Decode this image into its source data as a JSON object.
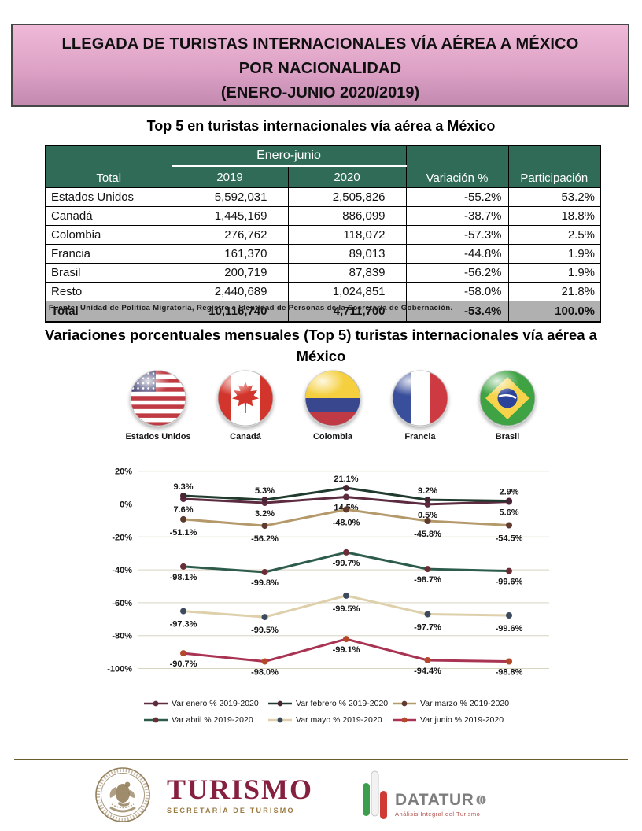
{
  "banner": {
    "title": "LLEGADA DE TURISTAS INTERNACIONALES VÍA AÉREA A MÉXICO POR NACIONALIDAD",
    "subtitle": "(ENERO-JUNIO 2020/2019)"
  },
  "table": {
    "title": "Top 5 en turistas internacionales vía aérea a México",
    "header": {
      "total": "Total",
      "group": "Enero-junio",
      "y2019": "2019",
      "y2020": "2020",
      "variacion": "Variación %",
      "participacion": "Participación"
    },
    "rows": [
      {
        "name": "Estados Unidos",
        "y2019": "5,592,031",
        "y2020": "2,505,826",
        "variacion": "-55.2%",
        "participacion": "53.2%"
      },
      {
        "name": "Canadá",
        "y2019": "1,445,169",
        "y2020": "886,099",
        "variacion": "-38.7%",
        "participacion": "18.8%"
      },
      {
        "name": "Colombia",
        "y2019": "276,762",
        "y2020": "118,072",
        "variacion": "-57.3%",
        "participacion": "2.5%"
      },
      {
        "name": "Francia",
        "y2019": "161,370",
        "y2020": "89,013",
        "variacion": "-44.8%",
        "participacion": "1.9%"
      },
      {
        "name": "Brasil",
        "y2019": "200,719",
        "y2020": "87,839",
        "variacion": "-56.2%",
        "participacion": "1.9%"
      },
      {
        "name": "Resto",
        "y2019": "2,440,689",
        "y2020": "1,024,851",
        "variacion": "-58.0%",
        "participacion": "21.8%"
      }
    ],
    "total_row": {
      "name": "Total",
      "y2019": "10,116,740",
      "y2020": "4,711,700",
      "variacion": "-53.4%",
      "participacion": "100.0%"
    },
    "source": "Fuente: Unidad de Política Migratoria, Registro e Identidad de Personas de la Secretaría de Gobernación."
  },
  "chart_section": {
    "title": "Variaciones porcentuales mensuales (Top 5) turistas internacionales vía aérea a México",
    "flags": [
      {
        "id": "us",
        "label": "Estados Unidos"
      },
      {
        "id": "ca",
        "label": "Canadá"
      },
      {
        "id": "co",
        "label": "Colombia"
      },
      {
        "id": "fr",
        "label": "Francia"
      },
      {
        "id": "br",
        "label": "Brasil"
      }
    ]
  },
  "chart_data": {
    "type": "line",
    "categories": [
      "Estados Unidos",
      "Canadá",
      "Colombia",
      "Francia",
      "Brasil"
    ],
    "y_axis": {
      "tick_labels": [
        "20%",
        "0%",
        "-20%",
        "-40%",
        "-60%",
        "-80%",
        "-100%"
      ],
      "tick_values": [
        20,
        0,
        -20,
        -40,
        -60,
        -80,
        -100
      ],
      "min": -100,
      "max": 20,
      "grid": true
    },
    "legend_position": "bottom",
    "series": [
      {
        "name": "Var enero % 2019-2020",
        "color": "#5c2b40",
        "marker_color": "#5c2b40",
        "values": [
          7.6,
          3.2,
          14.5,
          0.5,
          5.6
        ],
        "label_side": "below",
        "label_dy": 17,
        "plot_values": [
          3.1,
          0.7,
          4.3,
          -0.2,
          1.4
        ]
      },
      {
        "name": "Var febrero % 2019-2020",
        "color": "#203a2d",
        "marker_color": "#4a2535",
        "values": [
          9.3,
          5.3,
          21.1,
          9.2,
          2.9
        ],
        "label_side": "above",
        "label_dy": -8,
        "plot_values": [
          5.0,
          2.6,
          9.8,
          2.6,
          1.9
        ]
      },
      {
        "name": "Var marzo % 2019-2020",
        "color": "#b49a6b",
        "marker_color": "#5f3a2e",
        "values": [
          -51.1,
          -56.2,
          -48.0,
          -45.8,
          -54.5
        ],
        "label_side": "below",
        "label_dy": 20,
        "plot_values": [
          -9.3,
          -13.2,
          -3.3,
          -10.3,
          -12.9
        ]
      },
      {
        "name": "Var abril % 2019-2020",
        "color": "#2e5c4c",
        "marker_color": "#6b2d35",
        "values": [
          -98.1,
          -99.8,
          -99.7,
          -98.7,
          -99.6
        ],
        "label_side": "below",
        "label_dy": 17,
        "plot_values": [
          -38.0,
          -41.4,
          -29.4,
          -39.5,
          -40.7
        ]
      },
      {
        "name": "Var mayo % 2019-2020",
        "color": "#ddd0ab",
        "marker_color": "#3d4a5d",
        "values": [
          -97.3,
          -99.5,
          -99.5,
          -97.7,
          -99.6
        ],
        "label_side": "below",
        "label_dy": 20,
        "plot_values": [
          -65.1,
          -68.7,
          -55.7,
          -67.0,
          -67.7
        ]
      },
      {
        "name": "Var junio % 2019-2020",
        "color": "#a93352",
        "marker_color": "#b5472a",
        "values": [
          -90.7,
          -98.0,
          -99.1,
          -94.4,
          -98.8
        ],
        "label_side": "below",
        "label_dy": 17,
        "plot_values": [
          -90.7,
          -95.7,
          -82.1,
          -95.0,
          -95.7
        ]
      }
    ]
  },
  "footer": {
    "turismo": {
      "name": "TURISMO",
      "sub": "SECRETARÍA DE TURISMO"
    },
    "datatur": {
      "name": "DATATUR",
      "tagline": "Análisis Integral del Turismo"
    }
  },
  "theme": {
    "banner-top": "#efb9d7",
    "banner-mid": "#dda2c6",
    "banner-bottom": "#c389af",
    "header-green": "#2f6b57",
    "total-gray": "#b0b0b0",
    "grid-line": "#d9d3c0",
    "footer-line": "#6b5d2e",
    "turismo-maroon": "#85203f",
    "turismo-gold": "#99793f",
    "datatur-gray": "#7d7d7d",
    "datatur-green": "#3d9e4e",
    "datatur-red": "#d03a35",
    "tagline-red": "#b2524c"
  }
}
